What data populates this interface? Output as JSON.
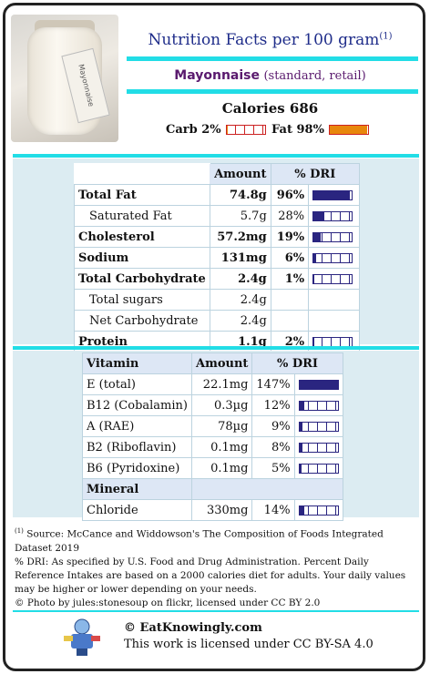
{
  "header": {
    "title": "Nutrition Facts per 100 gram",
    "title_note": "(1)",
    "food_name": "Mayonnaise",
    "food_kind": "(standard, retail)",
    "photo_label": "Mayonnaise"
  },
  "calories": "Calories 686",
  "macros": {
    "carb_label": "Carb 2%",
    "carb_fraction": 0.02,
    "fat_label": "Fat 98%",
    "fat_fraction": 0.98
  },
  "nutrients": {
    "col_amount": "Amount",
    "col_dri": "% DRI",
    "rows": [
      {
        "name": "Total Fat",
        "amount": "74.8g",
        "dri": "96%",
        "level": 0.96
      },
      {
        "name": "Saturated Fat",
        "amount": "5.7g",
        "dri": "28%",
        "level": 0.28
      },
      {
        "name": "Cholesterol",
        "amount": "57.2mg",
        "dri": "19%",
        "level": 0.19
      },
      {
        "name": "Sodium",
        "amount": "131mg",
        "dri": "6%",
        "level": 0.06
      },
      {
        "name": "Total Carbohydrate",
        "amount": "2.4g",
        "dri": "1%",
        "level": 0.01
      },
      {
        "name": "Total sugars",
        "amount": "2.4g",
        "dri": "",
        "level": null
      },
      {
        "name": "Net Carbohydrate",
        "amount": "2.4g",
        "dri": "",
        "level": null
      },
      {
        "name": "Protein",
        "amount": "1.1g",
        "dri": "2%",
        "level": 0.02
      }
    ]
  },
  "vitamins": {
    "col_vitamin": "Vitamin",
    "col_amount": "Amount",
    "col_dri": "% DRI",
    "rows": [
      {
        "name": "E (total)",
        "amount": "22.1mg",
        "dri": "147%",
        "level": 1.0
      },
      {
        "name": "B12 (Cobalamin)",
        "amount": "0.3µg",
        "dri": "12%",
        "level": 0.12
      },
      {
        "name": "A (RAE)",
        "amount": "78µg",
        "dri": "9%",
        "level": 0.09
      },
      {
        "name": "B2 (Riboflavin)",
        "amount": "0.1mg",
        "dri": "8%",
        "level": 0.08
      },
      {
        "name": "B6 (Pyridoxine)",
        "amount": "0.1mg",
        "dri": "5%",
        "level": 0.05
      }
    ],
    "mineral_header": "Mineral",
    "minerals": [
      {
        "name": "Chloride",
        "amount": "330mg",
        "dri": "14%",
        "level": 0.14
      }
    ]
  },
  "footer": {
    "note_marker": "(1)",
    "source": " Source: McCance and Widdowson's The Composition of Foods Integrated Dataset 2019",
    "dri_note": "% DRI: As specified by U.S. Food and Drug Administration. Percent Daily Reference Intakes are based on a 2000 calories diet for adults. Your daily values may be higher or lower depending on your needs.",
    "photo_credit": "© Photo by jules:stonesoup on flickr, licensed under CC BY 2.0",
    "site": "© EatKnowingly.com",
    "license": "This work is licensed under CC BY-SA 4.0"
  },
  "colors": {
    "accent": "#22dde6",
    "title": "#1f2d8a",
    "food": "#5a1a6e",
    "bar": "#2a2580",
    "fat": "#e8870c"
  }
}
